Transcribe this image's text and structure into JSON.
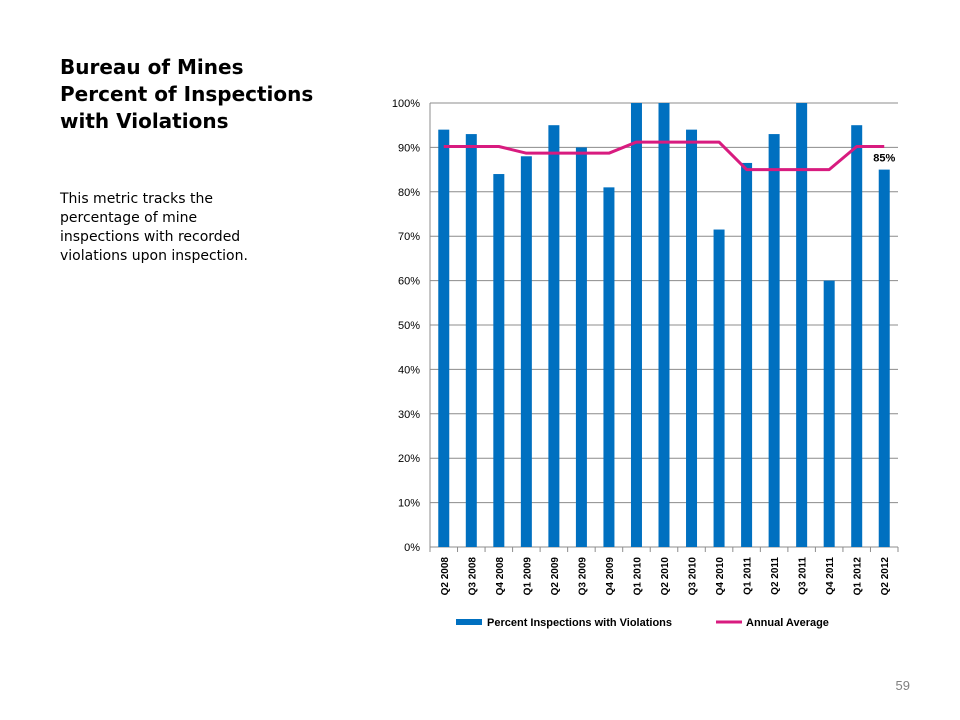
{
  "slide": {
    "title_lines": [
      "Bureau of Mines",
      "Percent of Inspections",
      "with Violations"
    ],
    "description": "This metric tracks the percentage of mine inspections with recorded violations upon inspection.",
    "page_number": "59"
  },
  "chart_data": {
    "type": "bar",
    "categories": [
      "Q2 2008",
      "Q3 2008",
      "Q4 2008",
      "Q1 2009",
      "Q2 2009",
      "Q3 2009",
      "Q4 2009",
      "Q1 2010",
      "Q2 2010",
      "Q3 2010",
      "Q4 2010",
      "Q1 2011",
      "Q2 2011",
      "Q3 2011",
      "Q4 2011",
      "Q1 2012",
      "Q2 2012"
    ],
    "series": [
      {
        "name": "Percent Inspections with Violations",
        "type": "bar",
        "color": "#0070c0",
        "values": [
          94,
          93,
          84,
          88,
          95,
          90,
          81,
          100,
          100,
          94,
          71.5,
          86.5,
          93,
          100,
          60,
          95,
          85
        ]
      },
      {
        "name": "Annual Average",
        "type": "line",
        "color": "#d81b7f",
        "values": [
          90.2,
          90.2,
          90.2,
          88.7,
          88.7,
          88.7,
          88.7,
          91.2,
          91.2,
          91.2,
          91.2,
          85,
          85,
          85,
          85,
          90.2,
          90.2
        ]
      }
    ],
    "ylim": [
      0,
      100
    ],
    "yticks": [
      "0%",
      "10%",
      "20%",
      "30%",
      "40%",
      "50%",
      "60%",
      "70%",
      "80%",
      "90%",
      "100%"
    ],
    "grid": true,
    "legend_position": "bottom",
    "annotations": [
      {
        "category": "Q2 2012",
        "text": "85%"
      }
    ]
  }
}
